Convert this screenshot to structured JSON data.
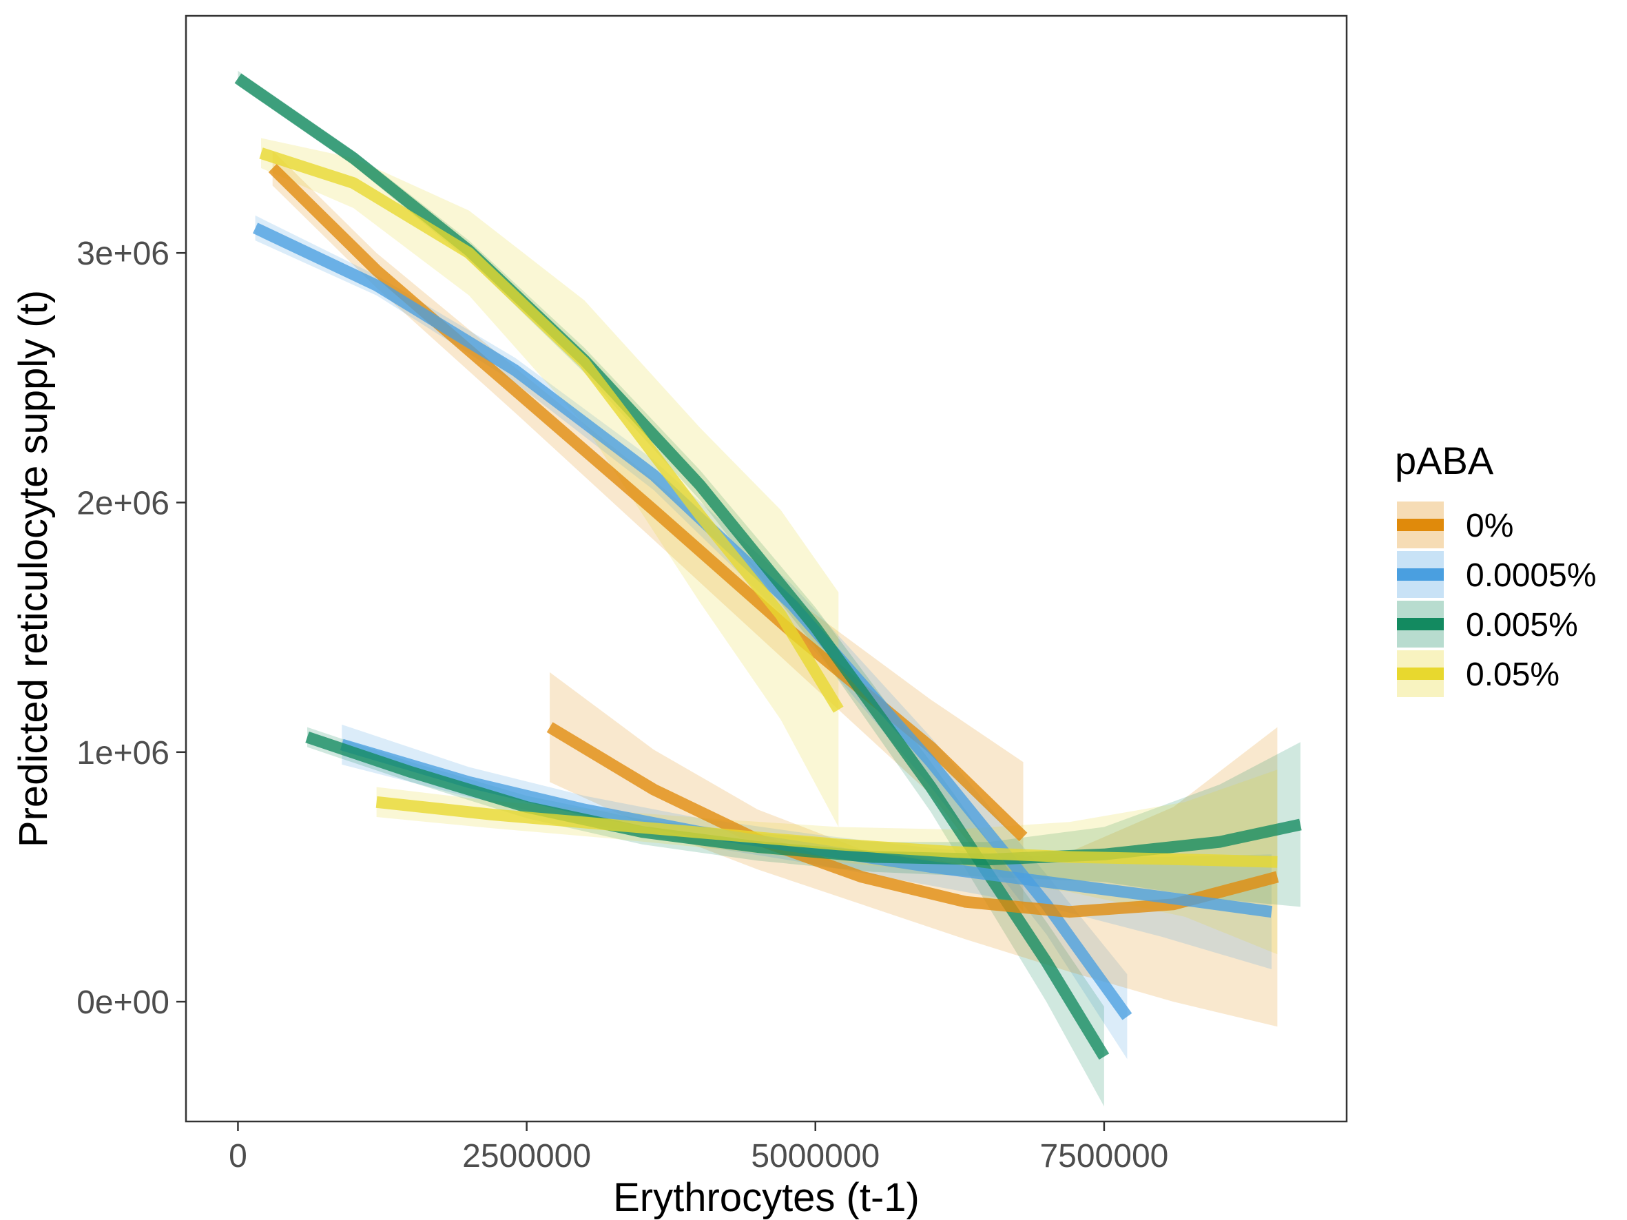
{
  "chart_data": {
    "type": "line",
    "xlabel": "Erythrocytes (t-1)",
    "ylabel": "Predicted reticulocyte supply (t)",
    "xlim": [
      -450000,
      9600000
    ],
    "ylim": [
      -480000,
      3950000
    ],
    "x_ticks": [
      0,
      2500000,
      5000000,
      7500000
    ],
    "x_tick_labels": [
      "0",
      "2500000",
      "5000000",
      "7500000"
    ],
    "y_ticks": [
      0,
      1000000,
      2000000,
      3000000
    ],
    "y_tick_labels": [
      "0e+00",
      "1e+06",
      "2e+06",
      "3e+06"
    ],
    "grid": false,
    "legend": {
      "title": "pABA",
      "position": "right",
      "entries": [
        "0%",
        "0.0005%",
        "0.005%",
        "0.05%"
      ]
    },
    "series": [
      {
        "name": "0%",
        "color": "#E08A0B",
        "group": "upper",
        "points": [
          [
            300000,
            3340000
          ],
          [
            1200000,
            2930000
          ],
          [
            2400000,
            2450000
          ],
          [
            3600000,
            1970000
          ],
          [
            4800000,
            1480000
          ],
          [
            6000000,
            1020000
          ],
          [
            6800000,
            660000
          ]
        ],
        "band_width": [
          70000,
          70000,
          90000,
          120000,
          140000,
          190000,
          300000
        ]
      },
      {
        "name": "0.0005%",
        "color": "#4A9FE0",
        "group": "upper",
        "points": [
          [
            150000,
            3100000
          ],
          [
            1200000,
            2870000
          ],
          [
            2400000,
            2530000
          ],
          [
            3600000,
            2110000
          ],
          [
            4800000,
            1590000
          ],
          [
            6000000,
            960000
          ],
          [
            7000000,
            390000
          ],
          [
            7700000,
            -60000
          ]
        ],
        "band_width": [
          50000,
          40000,
          50000,
          60000,
          80000,
          100000,
          120000,
          170000
        ]
      },
      {
        "name": "0.005%",
        "color": "#138A60",
        "group": "upper",
        "points": [
          [
            0,
            3700000
          ],
          [
            1000000,
            3380000
          ],
          [
            2000000,
            3010000
          ],
          [
            3000000,
            2570000
          ],
          [
            4000000,
            2070000
          ],
          [
            5000000,
            1500000
          ],
          [
            6000000,
            860000
          ],
          [
            7000000,
            160000
          ],
          [
            7500000,
            -220000
          ]
        ],
        "band_width": [
          30000,
          30000,
          40000,
          50000,
          60000,
          80000,
          100000,
          160000,
          200000
        ]
      },
      {
        "name": "0.05%",
        "color": "#E8D82E",
        "group": "upper",
        "points": [
          [
            200000,
            3400000
          ],
          [
            1000000,
            3280000
          ],
          [
            2000000,
            3000000
          ],
          [
            3000000,
            2560000
          ],
          [
            4000000,
            1950000
          ],
          [
            4700000,
            1550000
          ],
          [
            5200000,
            1170000
          ]
        ],
        "band_width": [
          60000,
          100000,
          170000,
          250000,
          350000,
          420000,
          470000
        ]
      },
      {
        "name": "0%",
        "color": "#E08A0B",
        "group": "lower",
        "points": [
          [
            2700000,
            1100000
          ],
          [
            3600000,
            850000
          ],
          [
            4500000,
            650000
          ],
          [
            5400000,
            500000
          ],
          [
            6300000,
            400000
          ],
          [
            7200000,
            360000
          ],
          [
            8100000,
            390000
          ],
          [
            9000000,
            500000
          ]
        ],
        "band_width": [
          220000,
          160000,
          120000,
          110000,
          150000,
          240000,
          390000,
          600000
        ]
      },
      {
        "name": "0.0005%",
        "color": "#4A9FE0",
        "group": "lower",
        "points": [
          [
            900000,
            1030000
          ],
          [
            2000000,
            880000
          ],
          [
            3000000,
            770000
          ],
          [
            4000000,
            680000
          ],
          [
            5000000,
            610000
          ],
          [
            6000000,
            540000
          ],
          [
            7000000,
            480000
          ],
          [
            8000000,
            420000
          ],
          [
            8950000,
            360000
          ]
        ],
        "band_width": [
          80000,
          60000,
          55000,
          55000,
          60000,
          75000,
          100000,
          160000,
          230000
        ]
      },
      {
        "name": "0.005%",
        "color": "#138A60",
        "group": "lower",
        "points": [
          [
            600000,
            1060000
          ],
          [
            1500000,
            920000
          ],
          [
            2500000,
            780000
          ],
          [
            3500000,
            680000
          ],
          [
            4500000,
            620000
          ],
          [
            5500000,
            580000
          ],
          [
            6500000,
            570000
          ],
          [
            7500000,
            590000
          ],
          [
            8500000,
            640000
          ],
          [
            9200000,
            710000
          ]
        ],
        "band_width": [
          40000,
          40000,
          45000,
          50000,
          55000,
          60000,
          70000,
          110000,
          230000,
          330000
        ]
      },
      {
        "name": "0.05%",
        "color": "#E8D82E",
        "group": "lower",
        "points": [
          [
            1200000,
            800000
          ],
          [
            2200000,
            750000
          ],
          [
            3200000,
            710000
          ],
          [
            4200000,
            670000
          ],
          [
            5200000,
            630000
          ],
          [
            6200000,
            600000
          ],
          [
            7200000,
            580000
          ],
          [
            8200000,
            570000
          ],
          [
            9000000,
            560000
          ]
        ],
        "band_width": [
          60000,
          55000,
          55000,
          60000,
          70000,
          90000,
          140000,
          230000,
          370000
        ]
      }
    ]
  }
}
